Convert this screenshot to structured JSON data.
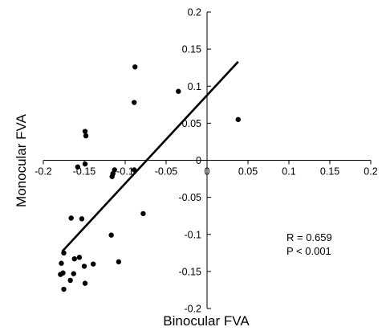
{
  "chart_data": {
    "type": "scatter",
    "title": "",
    "xlabel": "Binocular FVA",
    "ylabel": "Monocular FVA",
    "xlim": [
      -0.2,
      0.2
    ],
    "ylim": [
      -0.2,
      0.2
    ],
    "xticks": [
      -0.2,
      -0.15,
      -0.1,
      -0.05,
      0,
      0.05,
      0.1,
      0.15,
      0.2
    ],
    "yticks": [
      -0.2,
      -0.15,
      -0.1,
      -0.05,
      0,
      0.05,
      0.1,
      0.15,
      0.2
    ],
    "xtick_labels": [
      "-0.2",
      "-0.15",
      "-0.1",
      "-0.05",
      "0",
      "0.05",
      "0.1",
      "0.15",
      "0.2"
    ],
    "ytick_labels": [
      "-0.2",
      "-0.15",
      "-0.1",
      "-0.05",
      "0",
      "0.05",
      "0.1",
      "0.15",
      "0.2"
    ],
    "grid": false,
    "points": [
      {
        "x": -0.088,
        "y": 0.126
      },
      {
        "x": -0.089,
        "y": 0.078
      },
      {
        "x": -0.035,
        "y": 0.093
      },
      {
        "x": 0.038,
        "y": 0.055
      },
      {
        "x": -0.149,
        "y": 0.039
      },
      {
        "x": -0.148,
        "y": 0.033
      },
      {
        "x": -0.149,
        "y": -0.005
      },
      {
        "x": -0.158,
        "y": -0.009
      },
      {
        "x": -0.113,
        "y": -0.013
      },
      {
        "x": -0.115,
        "y": -0.018
      },
      {
        "x": -0.116,
        "y": -0.022
      },
      {
        "x": -0.089,
        "y": -0.013
      },
      {
        "x": -0.078,
        "y": -0.072
      },
      {
        "x": -0.166,
        "y": -0.078
      },
      {
        "x": -0.153,
        "y": -0.079
      },
      {
        "x": -0.117,
        "y": -0.101
      },
      {
        "x": -0.175,
        "y": -0.125
      },
      {
        "x": -0.108,
        "y": -0.137
      },
      {
        "x": -0.139,
        "y": -0.14
      },
      {
        "x": -0.178,
        "y": -0.139
      },
      {
        "x": -0.162,
        "y": -0.133
      },
      {
        "x": -0.156,
        "y": -0.131
      },
      {
        "x": -0.15,
        "y": -0.143
      },
      {
        "x": -0.163,
        "y": -0.153
      },
      {
        "x": -0.176,
        "y": -0.152
      },
      {
        "x": -0.179,
        "y": -0.154
      },
      {
        "x": -0.167,
        "y": -0.162
      },
      {
        "x": -0.149,
        "y": -0.166
      },
      {
        "x": -0.175,
        "y": -0.174
      }
    ],
    "trendline": {
      "x1": -0.177,
      "y1": -0.123,
      "x2": 0.038,
      "y2": 0.133
    },
    "annotations": [
      "R = 0.659",
      "P < 0.001"
    ]
  }
}
